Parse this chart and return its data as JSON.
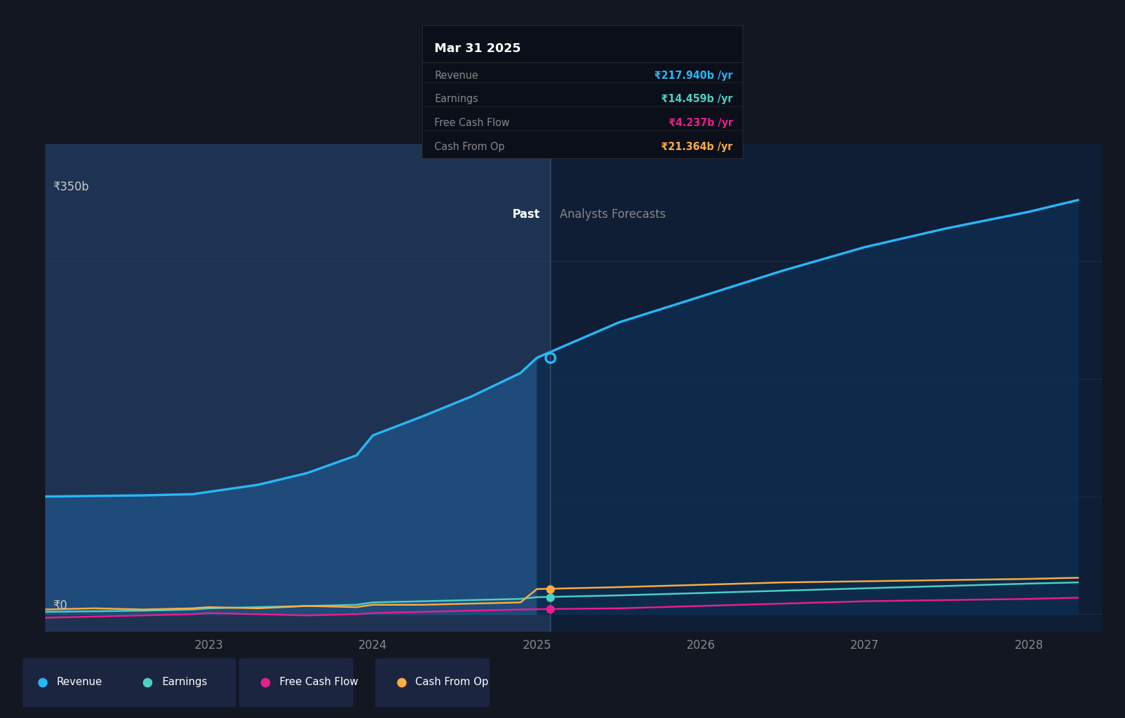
{
  "bg_color": "#131722",
  "plot_bg_past": "#1e3352",
  "plot_bg_future": "#0f1e35",
  "grid_color": "#2a3a55",
  "divider_color": "#4a6080",
  "years_past": [
    2022.0,
    2022.3,
    2022.6,
    2022.9,
    2023.0,
    2023.3,
    2023.6,
    2023.9,
    2024.0,
    2024.3,
    2024.6,
    2024.9,
    2025.0
  ],
  "revenue_past": [
    100,
    100.5,
    101,
    102,
    104,
    110,
    120,
    135,
    152,
    168,
    185,
    205,
    217.94
  ],
  "earnings_past": [
    2,
    2.5,
    3,
    4,
    5,
    6,
    7,
    8,
    10,
    11,
    12,
    13,
    14.459
  ],
  "fcf_past": [
    -3,
    -2,
    -1,
    0,
    1,
    0,
    -1,
    0,
    1,
    2,
    3,
    4,
    4.237
  ],
  "cashop_past": [
    4,
    5,
    4,
    5,
    6,
    5,
    7,
    6,
    8,
    8,
    9,
    10,
    21.364
  ],
  "years_future": [
    2025.0,
    2025.5,
    2026.0,
    2026.5,
    2027.0,
    2027.5,
    2028.0,
    2028.3
  ],
  "revenue_future": [
    217.94,
    248,
    270,
    292,
    312,
    328,
    342,
    352
  ],
  "earnings_future": [
    14.459,
    16,
    18,
    20,
    22,
    24,
    26,
    27
  ],
  "fcf_future": [
    4.237,
    5,
    7,
    9,
    11,
    12,
    13,
    14
  ],
  "cashop_future": [
    21.364,
    23,
    25,
    27,
    28,
    29,
    30,
    31
  ],
  "revenue_color": "#29b6f6",
  "earnings_color": "#4dd0c4",
  "fcf_color": "#e91e8c",
  "cashop_color": "#ffab40",
  "ylim_min": -15,
  "ylim_max": 400,
  "y350_val": 350,
  "xmin": 2022.0,
  "xmax": 2028.45,
  "divider_x": 2025.08,
  "past_label": "Past",
  "future_label": "Analysts Forecasts",
  "tooltip_title": "Mar 31 2025",
  "tooltip_rows": [
    [
      "Revenue",
      "₹217.940b /yr",
      "#29b6f6"
    ],
    [
      "Earnings",
      "₹14.459b /yr",
      "#4dd0c4"
    ],
    [
      "Free Cash Flow",
      "₹4.237b /yr",
      "#e91e8c"
    ],
    [
      "Cash From Op",
      "₹21.364b /yr",
      "#ffab40"
    ]
  ],
  "legend_items": [
    "Revenue",
    "Earnings",
    "Free Cash Flow",
    "Cash From Op"
  ],
  "legend_colors": [
    "#29b6f6",
    "#4dd0c4",
    "#e91e8c",
    "#ffab40"
  ],
  "xticks": [
    2023,
    2024,
    2025,
    2026,
    2027,
    2028
  ],
  "xtick_labels": [
    "2023",
    "2024",
    "2025",
    "2026",
    "2027",
    "2028"
  ],
  "label_350b": "₹350b",
  "label_0": "₹0"
}
